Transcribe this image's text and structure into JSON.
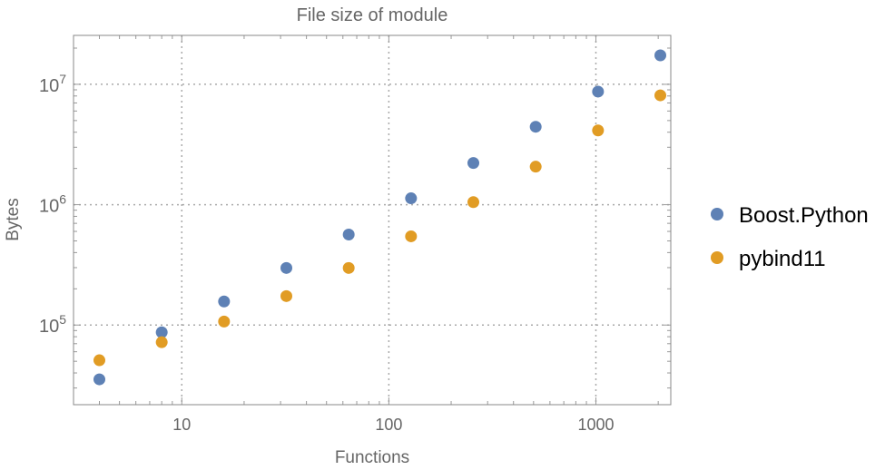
{
  "chart_data": {
    "type": "scatter",
    "title": "File size of module",
    "xlabel": "Functions",
    "ylabel": "Bytes",
    "xscale": "log",
    "yscale": "log",
    "xlim": [
      3.0,
      2300
    ],
    "ylim": [
      21800,
      25500000
    ],
    "grid": true,
    "legend_position": "right",
    "x_ticks": [
      {
        "value": 10,
        "label": "10"
      },
      {
        "value": 100,
        "label": "100"
      },
      {
        "value": 1000,
        "label": "1000"
      }
    ],
    "y_ticks": [
      {
        "value": 100000,
        "base": "10",
        "exp": "5"
      },
      {
        "value": 1000000,
        "base": "10",
        "exp": "6"
      },
      {
        "value": 10000000,
        "base": "10",
        "exp": "7"
      }
    ],
    "x": [
      4,
      8,
      16,
      32,
      64,
      128,
      256,
      512,
      1024,
      2048
    ],
    "series": [
      {
        "name": "Boost.Python",
        "color": "#5e81b5",
        "values": [
          35400,
          87000,
          157000,
          298000,
          565000,
          1130000,
          2220000,
          4440000,
          8700000,
          17400000
        ]
      },
      {
        "name": "pybind11",
        "color": "#e19c24",
        "values": [
          51000,
          72000,
          107000,
          174000,
          298000,
          546000,
          1050000,
          2070000,
          4140000,
          8100000
        ]
      }
    ]
  }
}
